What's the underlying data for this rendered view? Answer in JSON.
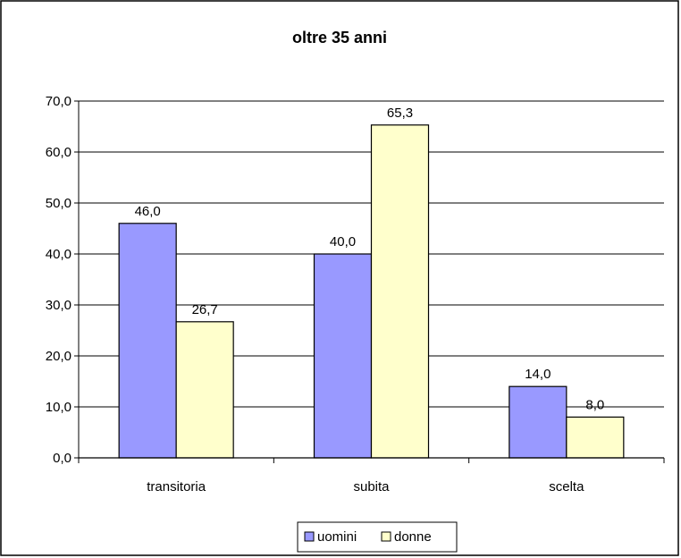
{
  "chart_data": {
    "type": "bar",
    "title": "oltre 35 anni",
    "xlabel": "",
    "ylabel": "",
    "categories": [
      "transitoria",
      "subita",
      "scelta"
    ],
    "series": [
      {
        "name": "uomini",
        "values": [
          46.0,
          40.0,
          14.0
        ],
        "color": "#9999FF"
      },
      {
        "name": "donne",
        "values": [
          26.7,
          65.3,
          8.0
        ],
        "color": "#FFFFCC"
      }
    ],
    "data_labels": [
      [
        "46,0",
        "40,0",
        "14,0"
      ],
      [
        "26,7",
        "65,3",
        "8,0"
      ]
    ],
    "ylim": [
      0,
      70
    ],
    "yticks": [
      0,
      10,
      20,
      30,
      40,
      50,
      60,
      70
    ],
    "ytick_labels": [
      "0,0",
      "10,0",
      "20,0",
      "30,0",
      "40,0",
      "50,0",
      "60,0",
      "70,0"
    ],
    "grid": true,
    "legend_position": "bottom",
    "frame_color": "#000000",
    "gridline_color": "#000000"
  }
}
